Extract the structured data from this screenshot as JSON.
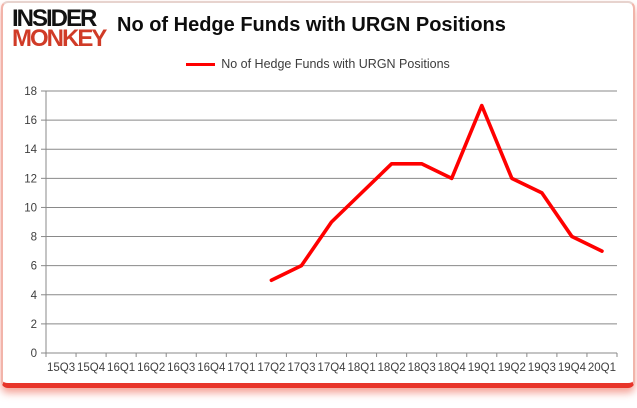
{
  "logo": {
    "line1": "INSIDER",
    "line2": "MONKEY"
  },
  "header": {
    "title": "No of Hedge Funds with URGN Positions"
  },
  "legend": {
    "label": "No of Hedge Funds with URGN Positions",
    "line_color": "#ff0000"
  },
  "chart_data": {
    "type": "line",
    "title": "No of Hedge Funds with URGN Positions",
    "categories": [
      "15Q3",
      "15Q4",
      "16Q1",
      "16Q2",
      "16Q3",
      "16Q4",
      "17Q1",
      "17Q2",
      "17Q3",
      "17Q4",
      "18Q1",
      "18Q2",
      "18Q3",
      "18Q4",
      "19Q1",
      "19Q2",
      "19Q3",
      "19Q4",
      "20Q1"
    ],
    "series": [
      {
        "name": "No of Hedge Funds with URGN Positions",
        "color": "#ff0000",
        "values": [
          null,
          null,
          null,
          null,
          null,
          null,
          null,
          5,
          6,
          9,
          11,
          13,
          13,
          12,
          17,
          12,
          11,
          8,
          7
        ]
      }
    ],
    "ylim": [
      0,
      18
    ],
    "ytick_step": 2,
    "grid": true,
    "legend_position": "top",
    "colors": {
      "line": "#ff0000",
      "gridline": "#898989",
      "axis": "#898989",
      "tick_label": "#3f3f3f"
    }
  }
}
